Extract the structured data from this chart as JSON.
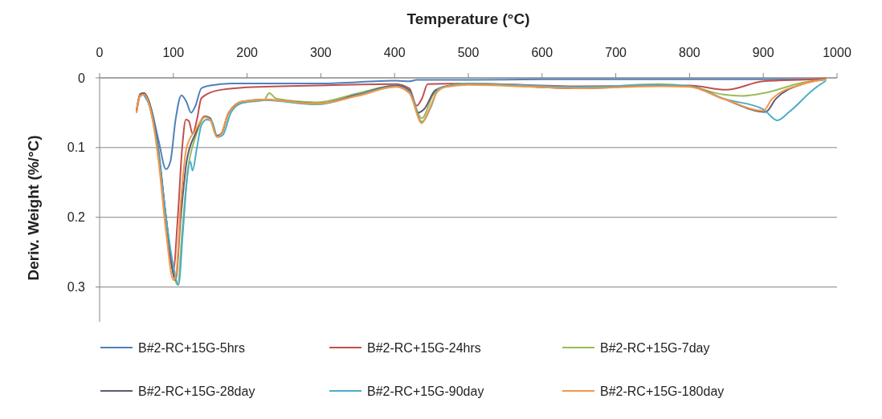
{
  "chart_data": {
    "type": "line",
    "xlabel": "Temperature (°C)",
    "ylabel": "Deriv. Weight (%/°C)",
    "xlim": [
      0,
      1000
    ],
    "xticks": [
      0,
      100,
      200,
      300,
      400,
      500,
      600,
      700,
      800,
      900,
      1000
    ],
    "ylim": [
      0.35,
      0
    ],
    "yticks": [
      0,
      0.1,
      0.2,
      0.3
    ],
    "grid": "y",
    "legend": "bottom",
    "series": [
      {
        "name": "B#2-RC+15G-5hrs",
        "color": "#4f81bd",
        "x": [
          60,
          70,
          80,
          90,
          96,
          103,
          111,
          118,
          124,
          130,
          138,
          150,
          179,
          250,
          300,
          402,
          420,
          430,
          500,
          600,
          800,
          985
        ],
        "values": [
          0.024,
          0.045,
          0.09,
          0.131,
          0.12,
          0.06,
          0.025,
          0.035,
          0.05,
          0.04,
          0.015,
          0.011,
          0.008,
          0.008,
          0.008,
          0.004,
          0.005,
          0.003,
          0.003,
          0.002,
          0.002,
          0.002
        ]
      },
      {
        "name": "B#2-RC+15G-24hrs",
        "color": "#c0504d",
        "x": [
          50,
          55,
          60,
          70,
          80,
          90,
          100,
          106,
          112,
          117,
          121,
          126,
          132,
          138,
          160,
          193,
          295,
          400,
          420,
          430,
          437,
          445,
          500,
          650,
          800,
          850,
          900,
          970,
          985
        ],
        "values": [
          0.05,
          0.026,
          0.024,
          0.05,
          0.11,
          0.2,
          0.276,
          0.2,
          0.1,
          0.06,
          0.062,
          0.08,
          0.06,
          0.029,
          0.018,
          0.014,
          0.011,
          0.009,
          0.015,
          0.04,
          0.03,
          0.009,
          0.008,
          0.012,
          0.011,
          0.017,
          0.005,
          0.002,
          0.001
        ]
      },
      {
        "name": "B#2-RC+15G-7day",
        "color": "#9bbb59",
        "x": [
          50,
          55,
          60,
          70,
          80,
          90,
          100,
          106,
          112,
          120,
          130,
          143,
          150,
          159,
          165,
          175,
          193,
          223,
          230,
          240,
          295,
          350,
          402,
          420,
          437,
          452,
          466,
          500,
          651,
          758,
          800,
          846,
          871,
          900,
          953,
          985
        ],
        "values": [
          0.048,
          0.024,
          0.023,
          0.045,
          0.11,
          0.2,
          0.28,
          0.297,
          0.22,
          0.13,
          0.085,
          0.056,
          0.06,
          0.084,
          0.08,
          0.05,
          0.036,
          0.032,
          0.022,
          0.03,
          0.035,
          0.022,
          0.011,
          0.02,
          0.058,
          0.025,
          0.013,
          0.008,
          0.014,
          0.009,
          0.012,
          0.024,
          0.026,
          0.022,
          0.007,
          0.002
        ]
      },
      {
        "name": "B#2-RC+15G-28day",
        "color": "#5a5a78",
        "x": [
          50,
          55,
          60,
          70,
          80,
          90,
          103,
          110,
          118,
          130,
          143,
          150,
          159,
          165,
          175,
          193,
          223,
          260,
          295,
          350,
          402,
          420,
          432,
          440,
          455,
          470,
          500,
          651,
          758,
          800,
          846,
          903,
          917,
          953,
          985
        ],
        "values": [
          0.048,
          0.023,
          0.022,
          0.045,
          0.105,
          0.2,
          0.29,
          0.2,
          0.12,
          0.08,
          0.055,
          0.058,
          0.083,
          0.08,
          0.05,
          0.034,
          0.031,
          0.034,
          0.037,
          0.024,
          0.011,
          0.018,
          0.05,
          0.045,
          0.018,
          0.012,
          0.009,
          0.015,
          0.011,
          0.012,
          0.03,
          0.049,
          0.03,
          0.009,
          0.002
        ]
      },
      {
        "name": "B#2-RC+15G-90day",
        "color": "#4bacc6",
        "x": [
          60,
          70,
          80,
          90,
          100,
          107,
          113,
          119,
          123,
          126,
          132,
          138,
          145,
          152,
          160,
          167,
          178,
          193,
          223,
          295,
          350,
          402,
          420,
          437,
          450,
          460,
          500,
          651,
          758,
          800,
          846,
          900,
          919,
          935,
          970,
          985
        ],
        "values": [
          0.024,
          0.048,
          0.11,
          0.2,
          0.27,
          0.297,
          0.22,
          0.14,
          0.12,
          0.133,
          0.1,
          0.068,
          0.06,
          0.062,
          0.085,
          0.082,
          0.05,
          0.036,
          0.032,
          0.038,
          0.025,
          0.012,
          0.02,
          0.063,
          0.04,
          0.015,
          0.009,
          0.013,
          0.01,
          0.012,
          0.03,
          0.045,
          0.061,
          0.049,
          0.015,
          0.004
        ]
      },
      {
        "name": "B#2-RC+15G-180day",
        "color": "#f79646",
        "x": [
          50,
          55,
          60,
          70,
          80,
          90,
          100,
          104,
          110,
          118,
          130,
          143,
          150,
          159,
          165,
          175,
          193,
          223,
          295,
          350,
          402,
          420,
          437,
          445,
          458,
          470,
          500,
          651,
          758,
          800,
          846,
          900,
          912,
          953,
          985
        ],
        "values": [
          0.05,
          0.025,
          0.024,
          0.05,
          0.12,
          0.22,
          0.29,
          0.28,
          0.18,
          0.1,
          0.075,
          0.056,
          0.06,
          0.085,
          0.08,
          0.05,
          0.034,
          0.031,
          0.037,
          0.026,
          0.013,
          0.022,
          0.065,
          0.05,
          0.02,
          0.013,
          0.01,
          0.015,
          0.012,
          0.013,
          0.03,
          0.047,
          0.03,
          0.009,
          0.002
        ]
      }
    ]
  }
}
